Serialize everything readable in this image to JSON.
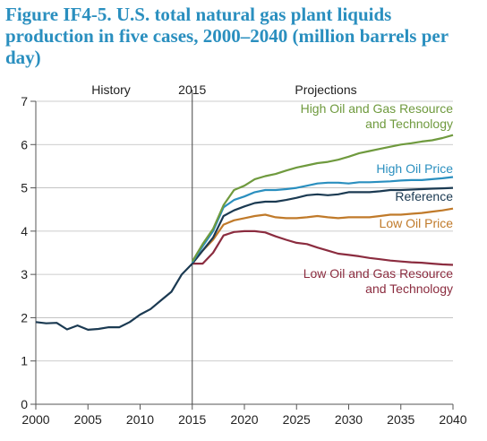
{
  "title": "Figure IF4-5. U.S. total natural gas plant liquids production in five cases, 2000–2040 (million barrels per day)",
  "chart_data": {
    "type": "line",
    "title": "Figure IF4-5. U.S. total natural gas plant liquids production in five cases, 2000–2040 (million barrels per day)",
    "xlim": [
      2000,
      2040
    ],
    "ylim": [
      0,
      7
    ],
    "x_ticks": [
      2000,
      2005,
      2010,
      2015,
      2020,
      2025,
      2030,
      2035,
      2040
    ],
    "y_ticks": [
      0,
      1,
      2,
      3,
      4,
      5,
      6,
      7
    ],
    "grid": "horizontal",
    "divider_year": 2015,
    "section_labels": {
      "history": "History",
      "year": "2015",
      "projections": "Projections"
    },
    "history": {
      "color": "#1b3a52",
      "x": [
        2000,
        2001,
        2002,
        2003,
        2004,
        2005,
        2006,
        2007,
        2008,
        2009,
        2010,
        2011,
        2012,
        2013,
        2014,
        2015
      ],
      "y": [
        1.9,
        1.87,
        1.88,
        1.73,
        1.82,
        1.72,
        1.74,
        1.78,
        1.78,
        1.9,
        2.07,
        2.2,
        2.4,
        2.6,
        3.0,
        3.25
      ]
    },
    "series": [
      {
        "name": "High Oil and Gas Resource and Technology",
        "label_lines": [
          "High Oil and Gas Resource",
          "and Technology"
        ],
        "color": "#6f9a3e",
        "x": [
          2015,
          2016,
          2017,
          2018,
          2019,
          2020,
          2021,
          2022,
          2023,
          2024,
          2025,
          2026,
          2027,
          2028,
          2029,
          2030,
          2031,
          2032,
          2033,
          2034,
          2035,
          2036,
          2037,
          2038,
          2039,
          2040
        ],
        "y": [
          3.3,
          3.7,
          4.05,
          4.6,
          4.95,
          5.05,
          5.2,
          5.27,
          5.32,
          5.4,
          5.47,
          5.52,
          5.57,
          5.6,
          5.65,
          5.72,
          5.8,
          5.85,
          5.9,
          5.95,
          6.0,
          6.03,
          6.07,
          6.1,
          6.15,
          6.22
        ]
      },
      {
        "name": "High Oil Price",
        "label_lines": [
          "High Oil Price"
        ],
        "color": "#2a8fbf",
        "x": [
          2015,
          2016,
          2017,
          2018,
          2019,
          2020,
          2021,
          2022,
          2023,
          2024,
          2025,
          2026,
          2027,
          2028,
          2029,
          2030,
          2031,
          2032,
          2033,
          2034,
          2035,
          2036,
          2037,
          2038,
          2039,
          2040
        ],
        "y": [
          3.28,
          3.65,
          4.0,
          4.55,
          4.72,
          4.8,
          4.9,
          4.95,
          4.95,
          4.97,
          5.0,
          5.05,
          5.1,
          5.12,
          5.12,
          5.1,
          5.13,
          5.13,
          5.14,
          5.15,
          5.17,
          5.18,
          5.18,
          5.2,
          5.22,
          5.25
        ]
      },
      {
        "name": "Reference",
        "label_lines": [
          "Reference"
        ],
        "color": "#1b3a52",
        "x": [
          2015,
          2016,
          2017,
          2018,
          2019,
          2020,
          2021,
          2022,
          2023,
          2024,
          2025,
          2026,
          2027,
          2028,
          2029,
          2030,
          2031,
          2032,
          2033,
          2034,
          2035,
          2036,
          2037,
          2038,
          2039,
          2040
        ],
        "y": [
          3.25,
          3.55,
          3.85,
          4.35,
          4.48,
          4.57,
          4.65,
          4.68,
          4.68,
          4.72,
          4.77,
          4.83,
          4.85,
          4.83,
          4.85,
          4.9,
          4.9,
          4.9,
          4.92,
          4.95,
          4.95,
          4.96,
          4.97,
          4.98,
          4.99,
          5.0
        ]
      },
      {
        "name": "Low Oil Price",
        "label_lines": [
          "Low Oil Price"
        ],
        "color": "#c07a2a",
        "x": [
          2015,
          2016,
          2017,
          2018,
          2019,
          2020,
          2021,
          2022,
          2023,
          2024,
          2025,
          2026,
          2027,
          2028,
          2029,
          2030,
          2031,
          2032,
          2033,
          2034,
          2035,
          2036,
          2037,
          2038,
          2039,
          2040
        ],
        "y": [
          3.25,
          3.55,
          3.8,
          4.15,
          4.25,
          4.3,
          4.35,
          4.38,
          4.32,
          4.3,
          4.3,
          4.32,
          4.35,
          4.32,
          4.3,
          4.32,
          4.32,
          4.32,
          4.35,
          4.38,
          4.38,
          4.4,
          4.42,
          4.45,
          4.48,
          4.52
        ]
      },
      {
        "name": "Low Oil and Gas Resource and Technology",
        "label_lines": [
          "Low Oil and Gas Resource",
          "and Technology"
        ],
        "color": "#8b2c3f",
        "x": [
          2015,
          2016,
          2017,
          2018,
          2019,
          2020,
          2021,
          2022,
          2023,
          2024,
          2025,
          2026,
          2027,
          2028,
          2029,
          2030,
          2031,
          2032,
          2033,
          2034,
          2035,
          2036,
          2037,
          2038,
          2039,
          2040
        ],
        "y": [
          3.25,
          3.25,
          3.5,
          3.9,
          3.98,
          4.0,
          4.0,
          3.97,
          3.88,
          3.8,
          3.73,
          3.7,
          3.62,
          3.55,
          3.48,
          3.45,
          3.42,
          3.38,
          3.35,
          3.32,
          3.3,
          3.28,
          3.27,
          3.25,
          3.23,
          3.22
        ]
      }
    ]
  }
}
